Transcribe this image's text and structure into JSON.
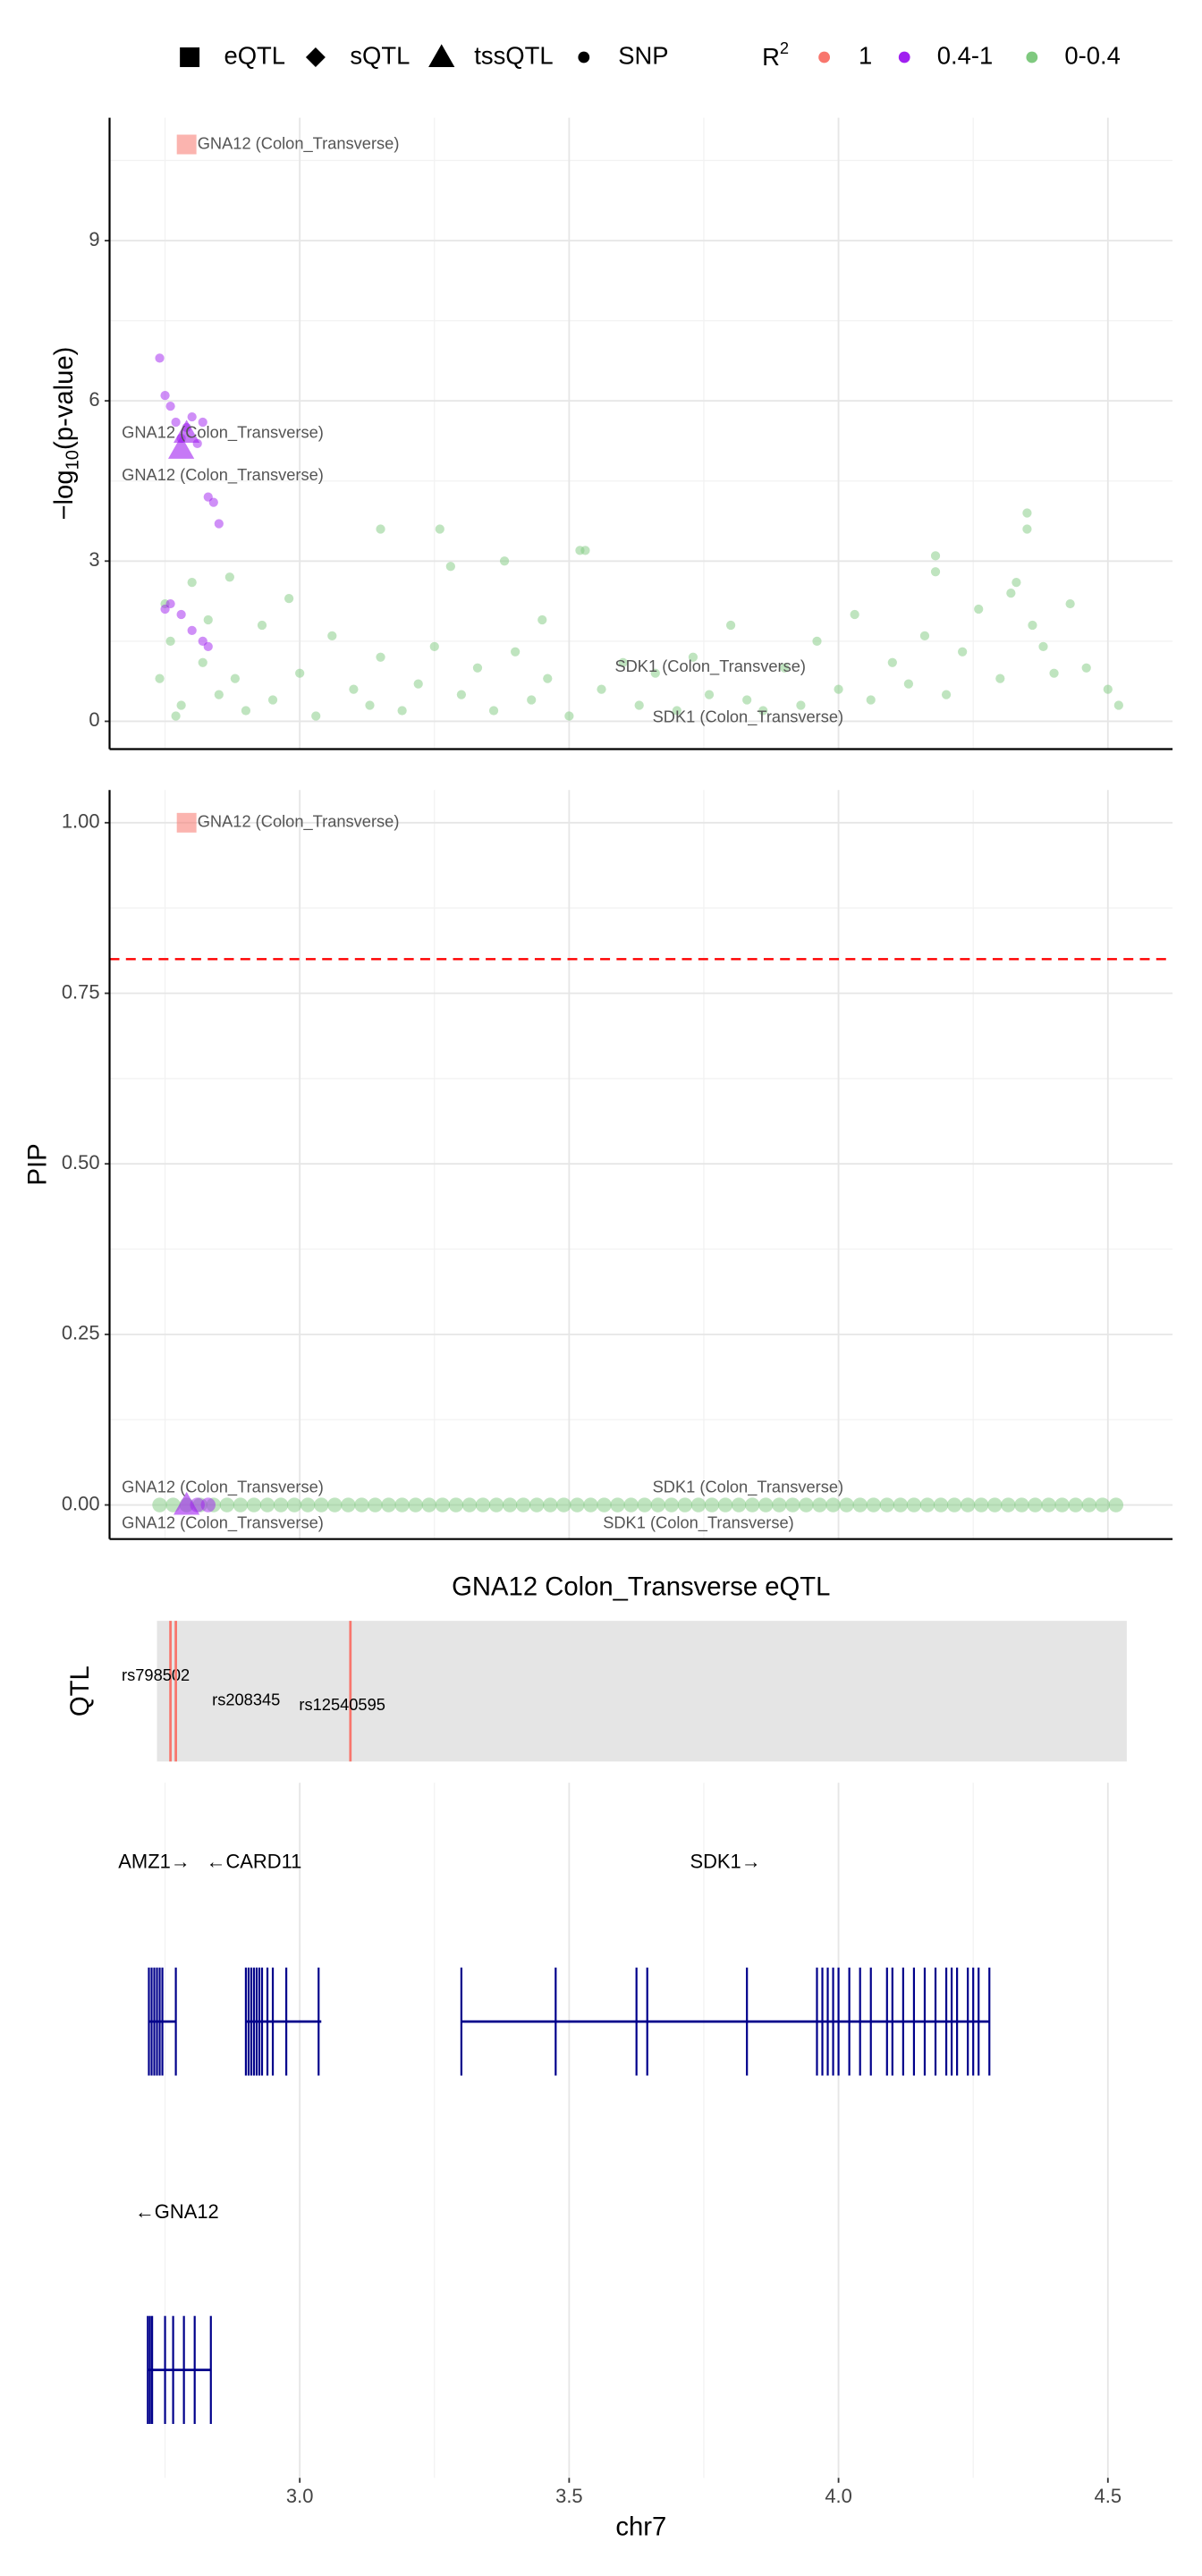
{
  "chart_data": [
    {
      "type": "scatter",
      "ylabel": {
        "main": "−log",
        "sub": "10",
        "rest": "(p-value)"
      },
      "xlim": [
        2.647,
        4.62
      ],
      "ylim": [
        -0.52,
        11.3
      ],
      "yticks": [
        0,
        3,
        6,
        9
      ],
      "y_minor": [
        1.5,
        4.5,
        7.5,
        10.5
      ],
      "grid": true,
      "shape_legend": [
        {
          "label": "eQTL",
          "shape": "square"
        },
        {
          "label": "sQTL",
          "shape": "diamond"
        },
        {
          "label": "tssQTL",
          "shape": "triangle"
        },
        {
          "label": "SNP",
          "shape": "circle"
        }
      ],
      "color_legend": {
        "title": "R",
        "title_sup": "2",
        "items": [
          {
            "label": "1",
            "color": "#f8766d"
          },
          {
            "label": "0.4-1",
            "color": "#a020f0"
          },
          {
            "label": "0-0.4",
            "color": "#7fc97f"
          }
        ]
      },
      "series": [
        {
          "color": "#7fc97f",
          "shape": "circle",
          "x": [
            2.74,
            2.75,
            2.76,
            2.78,
            2.8,
            2.82,
            2.85,
            2.87,
            2.9,
            2.93,
            2.95,
            2.98,
            3.0,
            3.03,
            3.06,
            3.1,
            3.13,
            3.15,
            3.19,
            3.22,
            3.25,
            3.28,
            3.3,
            3.33,
            3.36,
            3.4,
            3.43,
            3.46,
            3.5,
            3.53,
            3.56,
            3.6,
            3.63,
            3.66,
            3.7,
            3.73,
            3.76,
            3.8,
            3.83,
            3.86,
            3.9,
            3.93,
            3.96,
            4.0,
            4.03,
            4.06,
            4.1,
            4.13,
            4.16,
            4.18,
            4.2,
            4.23,
            4.26,
            4.3,
            4.33,
            4.35,
            4.35,
            4.38,
            4.4,
            4.43,
            4.46,
            4.5,
            4.52,
            2.77,
            2.83,
            2.88,
            3.15,
            3.26,
            3.38,
            3.45,
            3.52,
            4.18,
            4.32,
            4.36
          ],
          "values": [
            0.8,
            2.2,
            1.5,
            0.3,
            2.6,
            1.1,
            0.5,
            2.7,
            0.2,
            1.8,
            0.4,
            2.3,
            0.9,
            0.1,
            1.6,
            0.6,
            0.3,
            1.2,
            0.2,
            0.7,
            1.4,
            2.9,
            0.5,
            1.0,
            0.2,
            1.3,
            0.4,
            0.8,
            0.1,
            3.2,
            0.6,
            1.1,
            0.3,
            0.9,
            0.2,
            1.2,
            0.5,
            1.8,
            0.4,
            0.2,
            1.0,
            0.3,
            1.5,
            0.6,
            2.0,
            0.4,
            1.1,
            0.7,
            1.6,
            3.1,
            0.5,
            1.3,
            2.1,
            0.8,
            2.6,
            3.9,
            3.6,
            1.4,
            0.9,
            2.2,
            1.0,
            0.6,
            0.3,
            0.1,
            1.9,
            0.8,
            3.6,
            3.6,
            3.0,
            1.9,
            3.2,
            2.8,
            2.4,
            1.8
          ]
        },
        {
          "color": "#a020f0",
          "shape": "circle",
          "x": [
            2.74,
            2.75,
            2.76,
            2.77,
            2.78,
            2.79,
            2.8,
            2.81,
            2.82,
            2.83,
            2.84,
            2.85,
            2.76,
            2.78,
            2.8,
            2.82,
            2.83,
            2.75
          ],
          "values": [
            6.8,
            6.1,
            5.9,
            5.6,
            5.3,
            5.5,
            5.7,
            5.2,
            5.6,
            4.2,
            4.1,
            3.7,
            2.2,
            2.0,
            1.7,
            1.5,
            1.4,
            2.1
          ]
        },
        {
          "color": "#a020f0",
          "shape": "triangle",
          "x": [
            2.78,
            2.79
          ],
          "values": [
            5.1,
            5.4
          ]
        },
        {
          "color": "#f8766d",
          "shape": "square",
          "x": [
            2.79
          ],
          "values": [
            10.8
          ]
        }
      ],
      "annotations": [
        {
          "text": "GNA12 (Colon_Transverse)",
          "x": 2.81,
          "y": 10.8,
          "anchor": "start"
        },
        {
          "text": "GNA12 (Colon_Transverse)",
          "x": 2.857,
          "y": 5.39,
          "anchor": "middle"
        },
        {
          "text": "GNA12 (Colon_Transverse)",
          "x": 2.857,
          "y": 4.59,
          "anchor": "middle"
        },
        {
          "text": "SDK1 (Colon_Transverse)",
          "x": 3.762,
          "y": 1.01,
          "anchor": "middle"
        },
        {
          "text": "SDK1 (Colon_Transverse)",
          "x": 3.832,
          "y": 0.06,
          "anchor": "middle"
        }
      ]
    },
    {
      "type": "scatter",
      "ylabel": "PIP",
      "xlim": [
        2.647,
        4.62
      ],
      "ylim": [
        -0.05,
        1.048
      ],
      "yticks": [
        {
          "value": 0,
          "label": "0.00"
        },
        {
          "value": 0.25,
          "label": "0.25"
        },
        {
          "value": 0.5,
          "label": "0.50"
        },
        {
          "value": 0.75,
          "label": "0.75"
        },
        {
          "value": 1,
          "label": "1.00"
        }
      ],
      "y_minor": [
        0.125,
        0.375,
        0.625,
        0.875
      ],
      "grid": true,
      "threshold": 0.8,
      "threshold_color": "#ff0000",
      "series": [
        {
          "color": "#7fc97f",
          "shape": "circle",
          "x": [
            2.74,
            2.765,
            2.79,
            2.815,
            2.84,
            2.865,
            2.89,
            2.915,
            2.94,
            2.965,
            2.99,
            3.015,
            3.04,
            3.065,
            3.09,
            3.115,
            3.14,
            3.165,
            3.19,
            3.215,
            3.24,
            3.265,
            3.29,
            3.315,
            3.34,
            3.365,
            3.39,
            3.415,
            3.44,
            3.465,
            3.49,
            3.515,
            3.54,
            3.565,
            3.59,
            3.615,
            3.64,
            3.665,
            3.69,
            3.715,
            3.74,
            3.765,
            3.79,
            3.815,
            3.84,
            3.865,
            3.89,
            3.915,
            3.94,
            3.965,
            3.99,
            4.015,
            4.04,
            4.065,
            4.09,
            4.115,
            4.14,
            4.165,
            4.19,
            4.215,
            4.24,
            4.265,
            4.29,
            4.315,
            4.34,
            4.365,
            4.39,
            4.415,
            4.44,
            4.465,
            4.49,
            4.515
          ],
          "values": [
            0,
            0,
            0,
            0,
            0,
            0,
            0,
            0,
            0,
            0,
            0,
            0,
            0,
            0,
            0,
            0,
            0,
            0,
            0,
            0,
            0,
            0,
            0,
            0,
            0,
            0,
            0,
            0,
            0,
            0,
            0,
            0,
            0,
            0,
            0,
            0,
            0,
            0,
            0,
            0,
            0,
            0,
            0,
            0,
            0,
            0,
            0,
            0,
            0,
            0,
            0,
            0,
            0,
            0,
            0,
            0,
            0,
            0,
            0,
            0,
            0,
            0,
            0,
            0,
            0,
            0,
            0,
            0,
            0,
            0,
            0,
            0
          ]
        },
        {
          "color": "#a020f0",
          "shape": "circle",
          "x": [
            2.81,
            2.83
          ],
          "values": [
            0,
            0
          ]
        },
        {
          "color": "#a020f0",
          "shape": "triangle",
          "x": [
            2.79
          ],
          "values": [
            0
          ]
        },
        {
          "color": "#f8766d",
          "shape": "square",
          "x": [
            2.79
          ],
          "values": [
            1
          ]
        }
      ],
      "annotations": [
        {
          "text": "GNA12 (Colon_Transverse)",
          "x": 2.81,
          "y": 1,
          "anchor": "start"
        },
        {
          "text": "GNA12 (Colon_Transverse)",
          "x": 2.857,
          "y": 0.025,
          "anchor": "middle"
        },
        {
          "text": "GNA12 (Colon_Transverse)",
          "x": 2.857,
          "y": -0.028,
          "anchor": "middle"
        },
        {
          "text": "SDK1 (Colon_Transverse)",
          "x": 3.832,
          "y": 0.025,
          "anchor": "middle"
        },
        {
          "text": "SDK1 (Colon_Transverse)",
          "x": 3.74,
          "y": -0.028,
          "anchor": "middle"
        }
      ]
    },
    {
      "type": "track",
      "title": "GNA12 Colon_Transverse eQTL",
      "ylabel": "QTL",
      "xlim": [
        2.647,
        4.62
      ],
      "region": [
        2.735,
        4.535
      ],
      "color": "#f8766d",
      "variants": [
        {
          "name": "rs798502",
          "x": 2.76
        },
        {
          "name": "rs208345",
          "x": 2.77
        },
        {
          "name": "rs12540595",
          "x": 3.094
        }
      ]
    },
    {
      "type": "genes",
      "xlim": [
        2.647,
        4.62
      ],
      "xlabel": "chr7",
      "color": "#00008b",
      "xticks": [
        {
          "value": 3,
          "label": "3.0"
        },
        {
          "value": 3.5,
          "label": "3.5"
        },
        {
          "value": 4,
          "label": "4.0"
        },
        {
          "value": 4.5,
          "label": "4.5"
        }
      ],
      "x_minor": [
        2.75,
        3.25,
        3.75,
        4.25
      ],
      "gene_rows": [
        [
          {
            "label": "AMZ1→",
            "label_x": 2.73,
            "span": [
              2.72,
              2.77
            ],
            "exons": [
              2.72,
              2.725,
              2.73,
              2.735,
              2.74,
              2.745,
              2.77
            ]
          },
          {
            "label": "←CARD11",
            "label_x": 2.915,
            "span": [
              2.9,
              3.04
            ],
            "exons": [
              2.9,
              2.905,
              2.91,
              2.915,
              2.92,
              2.925,
              2.93,
              2.94,
              2.95,
              2.975,
              3.035
            ]
          },
          {
            "label": "SDK1→",
            "label_x": 3.79,
            "span": [
              3.3,
              4.28
            ],
            "exons": [
              3.3,
              3.475,
              3.625,
              3.645,
              3.83,
              3.96,
              3.97,
              3.98,
              3.99,
              4.0,
              4.02,
              4.04,
              4.06,
              4.09,
              4.1,
              4.12,
              4.14,
              4.16,
              4.18,
              4.2,
              4.21,
              4.22,
              4.24,
              4.25,
              4.26,
              4.28
            ]
          }
        ],
        [
          {
            "label": "←GNA12",
            "label_x": 2.772,
            "span": [
              2.718,
              2.835
            ],
            "exons": [
              2.718,
              2.722,
              2.726,
              2.75,
              2.765,
              2.785,
              2.805,
              2.835
            ]
          }
        ]
      ]
    }
  ]
}
